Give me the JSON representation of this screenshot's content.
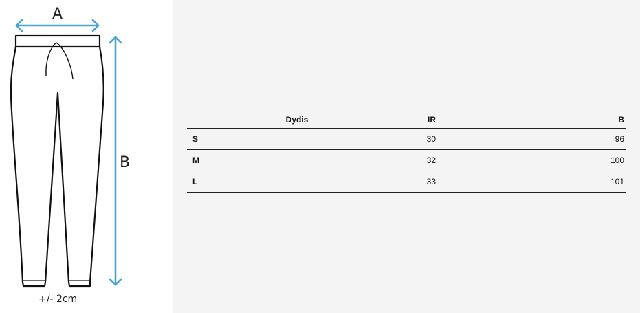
{
  "diagram": {
    "label_a": "A",
    "label_b": "B",
    "tolerance": "+/- 2cm",
    "arrow_color": "#4aa3cf"
  },
  "table": {
    "headers": [
      "Dydis",
      "IR",
      "B"
    ],
    "rows": [
      {
        "size": "S",
        "ir": "30",
        "b": "96"
      },
      {
        "size": "M",
        "ir": "32",
        "b": "100"
      },
      {
        "size": "L",
        "ir": "33",
        "b": "101"
      }
    ]
  }
}
